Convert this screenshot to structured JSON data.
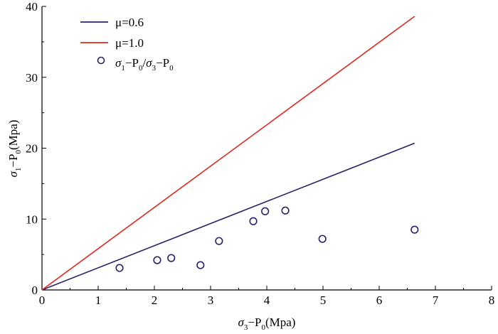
{
  "chart_data": {
    "type": "scatter",
    "xlabel": {
      "sym": "σ",
      "sub1": "3",
      "mid": "−P",
      "sub2": "0",
      "tail": "(Mpa)"
    },
    "ylabel": {
      "sym": "σ",
      "sub1": "1",
      "mid": "−P",
      "sub2": "0",
      "tail": "(Mpa)"
    },
    "xlim": [
      0,
      8
    ],
    "ylim": [
      0,
      40
    ],
    "x_ticks": [
      "0",
      "1",
      "2",
      "3",
      "4",
      "5",
      "6",
      "7",
      "8"
    ],
    "y_ticks": [
      "0",
      "10",
      "20",
      "30",
      "40"
    ],
    "grid": false,
    "legend_position": "top-left",
    "colors": {
      "line_mu06": "#2e1f6b",
      "line_mu10": "#e0281e",
      "points": "#2e1f6b",
      "axis": "#000000"
    },
    "lines": [
      {
        "name": "μ=0.6",
        "x": [
          0,
          6.63
        ],
        "y": [
          0,
          20.7
        ]
      },
      {
        "name": "μ=1.0",
        "x": [
          0,
          6.63
        ],
        "y": [
          0,
          38.6
        ]
      }
    ],
    "points_legend": {
      "a_sym": "σ",
      "a_sub": "1",
      "a_mid": "−P",
      "a_sub2": "0",
      "slash": "/",
      "b_sym": "σ",
      "b_sub": "3",
      "b_mid": "−P",
      "b_sub2": "0"
    },
    "points": {
      "x": [
        1.38,
        2.05,
        2.3,
        2.82,
        3.15,
        3.76,
        3.97,
        4.33,
        4.99,
        6.63
      ],
      "y": [
        3.1,
        4.2,
        4.5,
        3.5,
        6.9,
        9.7,
        11.1,
        11.2,
        7.2,
        8.5
      ]
    }
  }
}
